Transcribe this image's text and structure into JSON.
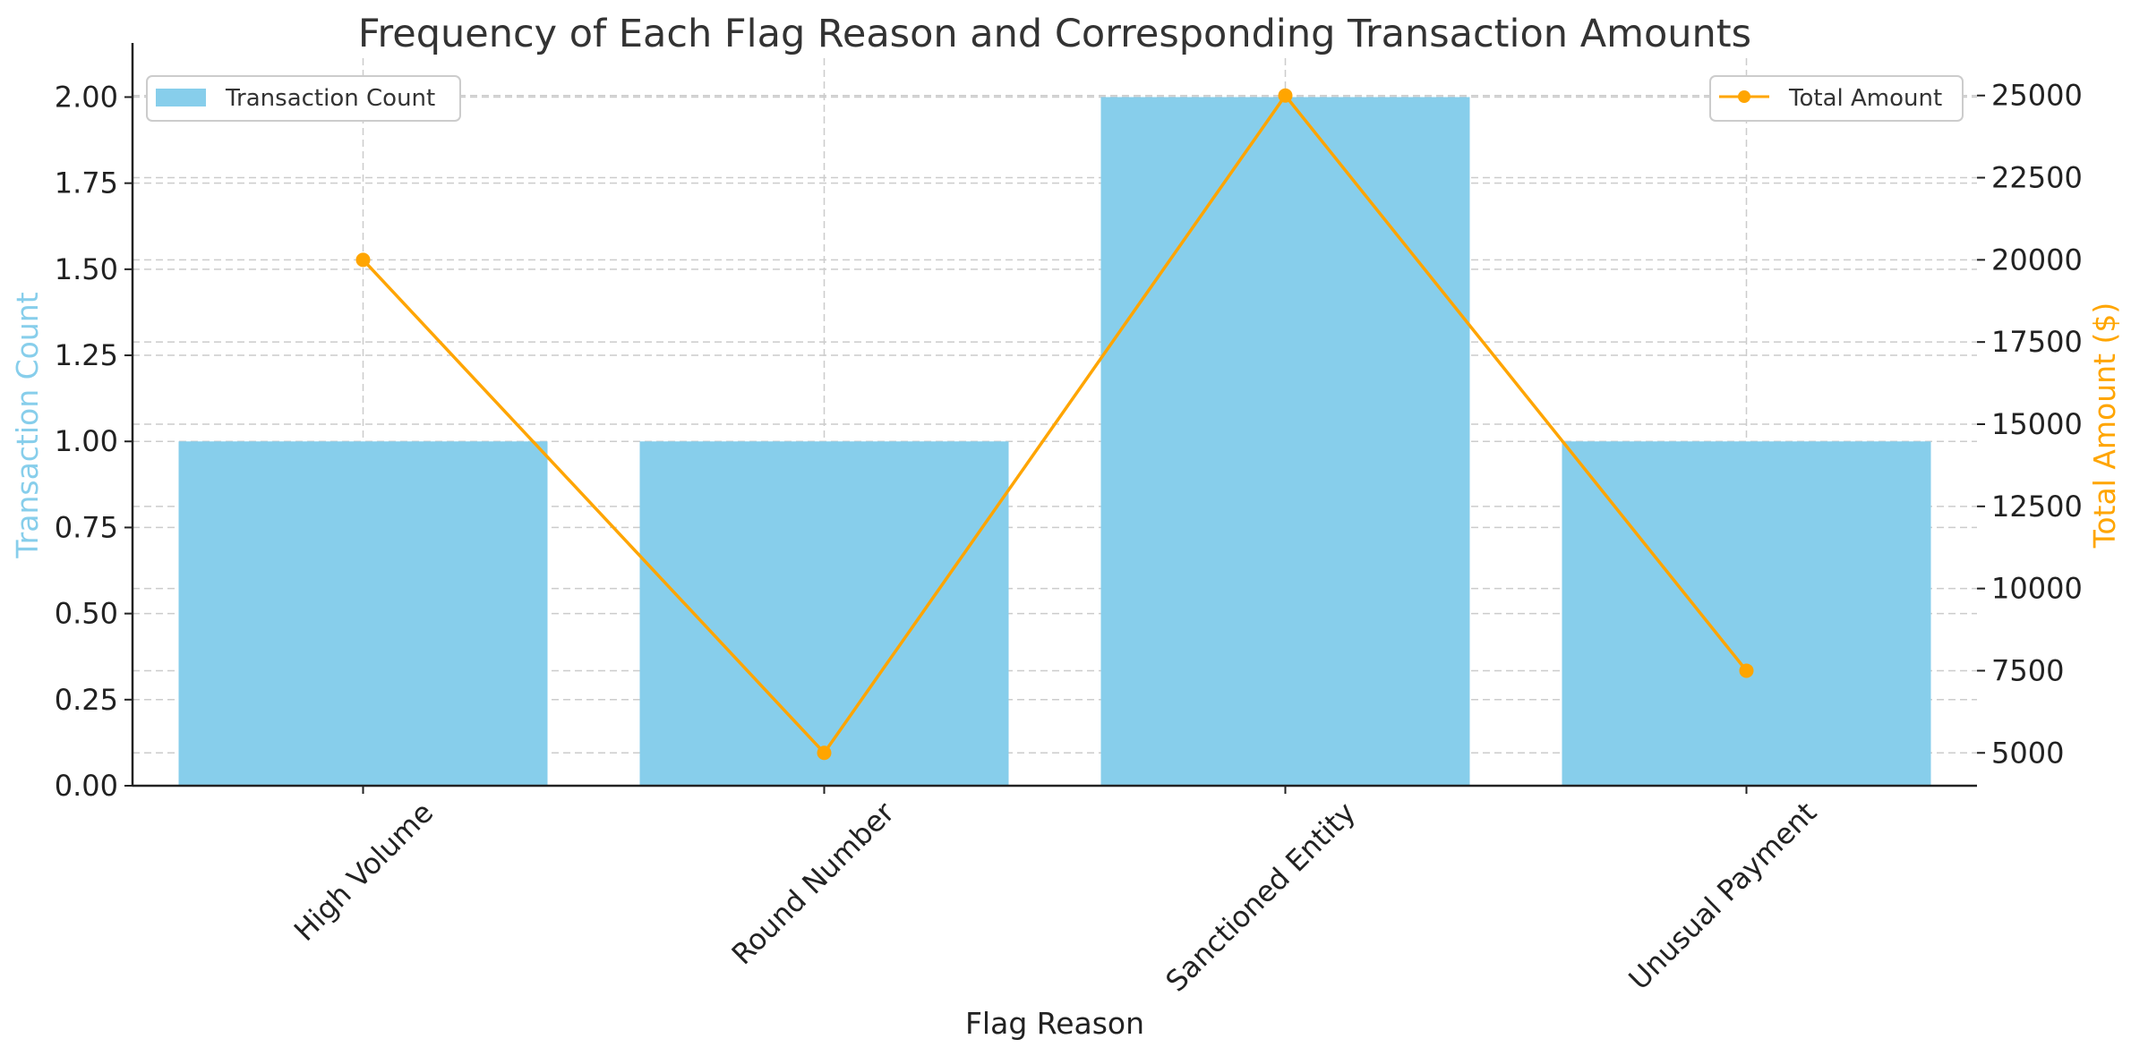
{
  "chart_data": {
    "type": "bar",
    "title": "Frequency of Each Flag Reason and Corresponding Transaction Amounts",
    "xlabel": "Flag Reason",
    "ylabel": "Transaction Count",
    "y2label": "Total Amount ($)",
    "categories": [
      "High Volume",
      "Round Number",
      "Sanctioned Entity",
      "Unusual Payment"
    ],
    "series": [
      {
        "name": "Transaction Count",
        "type": "bar",
        "axis": "left",
        "color": "#87CEEB",
        "values": [
          1,
          1,
          2,
          1
        ]
      },
      {
        "name": "Total Amount",
        "type": "line",
        "axis": "right",
        "color": "#FFA500",
        "values": [
          20000,
          5000,
          25000,
          7500
        ]
      }
    ],
    "ylim": [
      0,
      2.1
    ],
    "y2lim": [
      4000,
      26000
    ],
    "yticks": [
      "0.00",
      "0.25",
      "0.50",
      "0.75",
      "1.00",
      "1.25",
      "1.50",
      "1.75",
      "2.00"
    ],
    "y2ticks": [
      "5000",
      "7500",
      "10000",
      "12500",
      "15000",
      "17500",
      "20000",
      "22500",
      "25000"
    ],
    "grid": true,
    "legend_left": "upper-left",
    "legend_right": "upper-right",
    "ylabel_color": "#87CEEB",
    "y2label_color": "#FFA500"
  }
}
